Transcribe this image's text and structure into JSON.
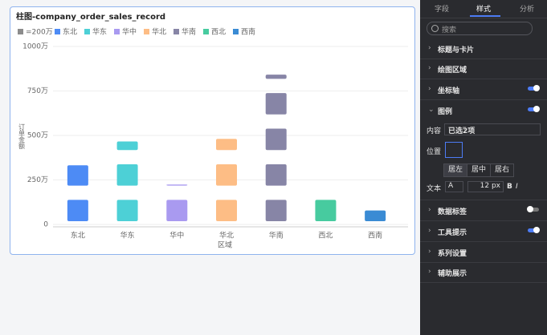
{
  "chart_data": {
    "type": "bar",
    "title": "柱图-company_order_sales_record",
    "categories": [
      "东北",
      "华东",
      "华中",
      "华北",
      "华南",
      "西北",
      "西南"
    ],
    "values": [
      390,
      480,
      210,
      505,
      840,
      200,
      100
    ],
    "colors": [
      "#4d8bf5",
      "#4dd0d6",
      "#a99af0",
      "#fdbd85",
      "#8785a6",
      "#47cb9f",
      "#3a8bd4"
    ],
    "symbol_unit": {
      "value": 200,
      "label": "=200万"
    },
    "symbol_color": "#8c8c8c",
    "ylim": [
      0,
      1000
    ],
    "yticks": [
      {
        "value": 0,
        "label": "0"
      },
      {
        "value": 250,
        "label": "250万"
      },
      {
        "value": 500,
        "label": "500万"
      },
      {
        "value": 750,
        "label": "750万"
      },
      {
        "value": 1000,
        "label": "1000万"
      }
    ],
    "x_label": "区域",
    "y_label": "订单金额",
    "grid": true
  },
  "panel": {
    "tabs": [
      "字段",
      "样式",
      "分析"
    ],
    "search": "搜索",
    "sections": [
      "标题与卡片",
      "绘图区域",
      "坐标轴",
      "图例",
      "数据标签",
      "工具提示",
      "系列设置",
      "辅助展示"
    ],
    "legend": {
      "content_label": "内容",
      "content_value": "已选2项",
      "position_label": "位置",
      "align": [
        "居左",
        "居中",
        "居右"
      ],
      "text_label": "文本",
      "font": "A",
      "font_size": "12 px",
      "bold": "B",
      "italic": "I"
    }
  }
}
